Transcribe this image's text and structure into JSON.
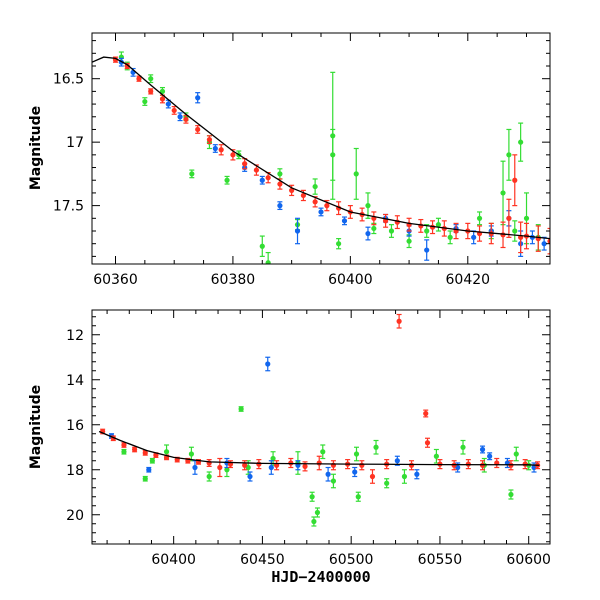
{
  "colors": {
    "green": "#33dd33",
    "blue": "#1166ee",
    "red": "#ff3322",
    "model": "#000000"
  },
  "chart_data": [
    {
      "type": "scatter",
      "ylabel": "Magnitude",
      "xlabel": "",
      "xlim": [
        60356,
        60434
      ],
      "ylim": [
        17.96,
        16.14
      ],
      "y_inverted": true,
      "xticks": [
        60360,
        60380,
        60400,
        60420
      ],
      "yticks": [
        16.5,
        17,
        17.5
      ],
      "xtick_labels": [
        "60360",
        "60380",
        "60400",
        "60420"
      ],
      "ytick_labels": [
        "16.5",
        "17",
        "17.5"
      ],
      "model_curve": [
        [
          60356,
          16.37
        ],
        [
          60358,
          16.33
        ],
        [
          60360,
          16.34
        ],
        [
          60362,
          16.39
        ],
        [
          60366,
          16.55
        ],
        [
          60372,
          16.78
        ],
        [
          60380,
          17.07
        ],
        [
          60390,
          17.36
        ],
        [
          60400,
          17.55
        ],
        [
          60410,
          17.64
        ],
        [
          60420,
          17.7
        ],
        [
          60430,
          17.74
        ],
        [
          60434,
          17.76
        ]
      ],
      "series": [
        {
          "color": "green",
          "points": [
            [
              60361,
              16.33,
              0.04
            ],
            [
              60362,
              16.4,
              0.03
            ],
            [
              60365,
              16.68,
              0.03
            ],
            [
              60366,
              16.5,
              0.03
            ],
            [
              60368,
              16.6,
              0.03
            ],
            [
              60372,
              16.8,
              0.03
            ],
            [
              60373,
              17.25,
              0.03
            ],
            [
              60376,
              17.0,
              0.05
            ],
            [
              60379,
              17.3,
              0.03
            ],
            [
              60381,
              17.1,
              0.03
            ],
            [
              60385,
              17.82,
              0.08
            ],
            [
              60386,
              17.95,
              0.08
            ],
            [
              60388,
              17.25,
              0.04
            ],
            [
              60391,
              17.65,
              0.04
            ],
            [
              60394,
              17.35,
              0.06
            ],
            [
              60397,
              16.95,
              0.5
            ],
            [
              60397,
              17.1,
              0.2
            ],
            [
              60398,
              17.8,
              0.04
            ],
            [
              60401,
              17.25,
              0.2
            ],
            [
              60403,
              17.5,
              0.1
            ],
            [
              60404,
              17.68,
              0.04
            ],
            [
              60407,
              17.7,
              0.05
            ],
            [
              60410,
              17.78,
              0.05
            ],
            [
              60413,
              17.7,
              0.05
            ],
            [
              60415,
              17.65,
              0.05
            ],
            [
              60417,
              17.75,
              0.05
            ],
            [
              60422,
              17.6,
              0.05
            ],
            [
              60424,
              17.7,
              0.06
            ],
            [
              60426,
              17.4,
              0.25
            ],
            [
              60427,
              17.1,
              0.2
            ],
            [
              60428,
              17.7,
              0.08
            ],
            [
              60429,
              17.0,
              0.15
            ],
            [
              60430,
              17.6,
              0.2
            ],
            [
              60432,
              17.75,
              0.1
            ]
          ]
        },
        {
          "color": "blue",
          "points": [
            [
              60361,
              16.37,
              0.03
            ],
            [
              60363,
              16.45,
              0.03
            ],
            [
              60369,
              16.7,
              0.03
            ],
            [
              60371,
              16.8,
              0.03
            ],
            [
              60374,
              16.65,
              0.04
            ],
            [
              60377,
              17.05,
              0.03
            ],
            [
              60382,
              17.2,
              0.03
            ],
            [
              60385,
              17.3,
              0.03
            ],
            [
              60388,
              17.5,
              0.03
            ],
            [
              60391,
              17.7,
              0.1
            ],
            [
              60395,
              17.55,
              0.03
            ],
            [
              60399,
              17.62,
              0.03
            ],
            [
              60403,
              17.72,
              0.05
            ],
            [
              60406,
              17.6,
              0.03
            ],
            [
              60410,
              17.7,
              0.04
            ],
            [
              60413,
              17.85,
              0.08
            ],
            [
              60418,
              17.68,
              0.03
            ],
            [
              60421,
              17.75,
              0.05
            ],
            [
              60424,
              17.7,
              0.04
            ],
            [
              60427,
              17.6,
              0.06
            ],
            [
              60429,
              17.8,
              0.1
            ],
            [
              60431,
              17.75,
              0.05
            ],
            [
              60433,
              17.8,
              0.05
            ]
          ]
        },
        {
          "color": "red",
          "points": [
            [
              60360,
              16.35,
              0.02
            ],
            [
              60362,
              16.4,
              0.02
            ],
            [
              60364,
              16.5,
              0.02
            ],
            [
              60366,
              16.6,
              0.02
            ],
            [
              60368,
              16.66,
              0.03
            ],
            [
              60370,
              16.75,
              0.03
            ],
            [
              60372,
              16.82,
              0.03
            ],
            [
              60374,
              16.9,
              0.03
            ],
            [
              60376,
              16.98,
              0.03
            ],
            [
              60378,
              17.06,
              0.04
            ],
            [
              60380,
              17.1,
              0.04
            ],
            [
              60382,
              17.17,
              0.04
            ],
            [
              60384,
              17.22,
              0.04
            ],
            [
              60386,
              17.28,
              0.04
            ],
            [
              60388,
              17.33,
              0.04
            ],
            [
              60390,
              17.38,
              0.04
            ],
            [
              60392,
              17.42,
              0.04
            ],
            [
              60394,
              17.47,
              0.04
            ],
            [
              60396,
              17.5,
              0.04
            ],
            [
              60398,
              17.52,
              0.05
            ],
            [
              60400,
              17.55,
              0.05
            ],
            [
              60402,
              17.57,
              0.05
            ],
            [
              60404,
              17.6,
              0.05
            ],
            [
              60406,
              17.62,
              0.05
            ],
            [
              60408,
              17.63,
              0.05
            ],
            [
              60410,
              17.65,
              0.05
            ],
            [
              60412,
              17.66,
              0.05
            ],
            [
              60414,
              17.67,
              0.05
            ],
            [
              60416,
              17.68,
              0.06
            ],
            [
              60418,
              17.7,
              0.06
            ],
            [
              60420,
              17.7,
              0.06
            ],
            [
              60422,
              17.72,
              0.06
            ],
            [
              60424,
              17.72,
              0.08
            ],
            [
              60426,
              17.73,
              0.1
            ],
            [
              60427,
              17.6,
              0.15
            ],
            [
              60428,
              17.3,
              0.2
            ],
            [
              60429,
              17.75,
              0.12
            ],
            [
              60430,
              17.74,
              0.1
            ],
            [
              60432,
              17.76,
              0.1
            ],
            [
              60434,
              17.78,
              0.1
            ]
          ]
        }
      ]
    },
    {
      "type": "scatter",
      "ylabel": "Magnitude",
      "xlabel": "HJD−2400000",
      "xlim": [
        60354,
        60612
      ],
      "ylim": [
        21.3,
        10.9
      ],
      "y_inverted": true,
      "xticks": [
        60400,
        60450,
        60500,
        60550,
        60600
      ],
      "yticks": [
        12,
        14,
        16,
        18,
        20
      ],
      "xtick_labels": [
        "60400",
        "60450",
        "60500",
        "60550",
        "60600"
      ],
      "ytick_labels": [
        "12",
        "14",
        "16",
        "18",
        "20"
      ],
      "model_curve": [
        [
          60358,
          16.3
        ],
        [
          60370,
          16.7
        ],
        [
          60385,
          17.15
        ],
        [
          60400,
          17.45
        ],
        [
          60420,
          17.65
        ],
        [
          60450,
          17.72
        ],
        [
          60500,
          17.75
        ],
        [
          60550,
          17.77
        ],
        [
          60600,
          17.78
        ],
        [
          60606,
          17.8
        ]
      ],
      "series": [
        {
          "color": "green",
          "points": [
            [
              60372,
              17.2,
              0.1
            ],
            [
              60384,
              18.4,
              0.1
            ],
            [
              60388,
              17.6,
              0.1
            ],
            [
              60396,
              17.2,
              0.3
            ],
            [
              60410,
              17.3,
              0.3
            ],
            [
              60420,
              18.3,
              0.2
            ],
            [
              60430,
              18.0,
              0.3
            ],
            [
              60438,
              15.3,
              0.1
            ],
            [
              60442,
              17.9,
              0.3
            ],
            [
              60456,
              17.5,
              0.3
            ],
            [
              60470,
              17.7,
              0.5
            ],
            [
              60478,
              19.2,
              0.2
            ],
            [
              60479,
              20.3,
              0.2
            ],
            [
              60481,
              19.9,
              0.2
            ],
            [
              60484,
              17.2,
              0.3
            ],
            [
              60490,
              18.5,
              0.3
            ],
            [
              60503,
              17.3,
              0.3
            ],
            [
              60504,
              19.2,
              0.2
            ],
            [
              60514,
              17.0,
              0.3
            ],
            [
              60520,
              18.6,
              0.2
            ],
            [
              60530,
              18.3,
              0.3
            ],
            [
              60548,
              17.4,
              0.3
            ],
            [
              60563,
              17.0,
              0.3
            ],
            [
              60575,
              17.8,
              0.3
            ],
            [
              60590,
              19.1,
              0.2
            ],
            [
              60593,
              17.3,
              0.3
            ],
            [
              60600,
              17.8,
              0.2
            ]
          ]
        },
        {
          "color": "blue",
          "points": [
            [
              60365,
              16.5,
              0.1
            ],
            [
              60386,
              18.0,
              0.1
            ],
            [
              60412,
              17.9,
              0.3
            ],
            [
              60430,
              17.7,
              0.2
            ],
            [
              60443,
              18.3,
              0.2
            ],
            [
              60453,
              13.3,
              0.3
            ],
            [
              60455,
              17.9,
              0.3
            ],
            [
              60470,
              17.8,
              0.2
            ],
            [
              60487,
              18.2,
              0.3
            ],
            [
              60502,
              18.1,
              0.2
            ],
            [
              60526,
              17.6,
              0.2
            ],
            [
              60537,
              18.2,
              0.2
            ],
            [
              60560,
              17.9,
              0.2
            ],
            [
              60574,
              17.1,
              0.15
            ],
            [
              60578,
              17.4,
              0.15
            ],
            [
              60588,
              17.7,
              0.2
            ],
            [
              60603,
              17.9,
              0.2
            ]
          ]
        },
        {
          "color": "red",
          "points": [
            [
              60360,
              16.3,
              0.1
            ],
            [
              60366,
              16.6,
              0.1
            ],
            [
              60372,
              16.9,
              0.1
            ],
            [
              60378,
              17.1,
              0.1
            ],
            [
              60384,
              17.25,
              0.1
            ],
            [
              60390,
              17.35,
              0.1
            ],
            [
              60396,
              17.45,
              0.1
            ],
            [
              60402,
              17.55,
              0.1
            ],
            [
              60408,
              17.6,
              0.1
            ],
            [
              60414,
              17.65,
              0.1
            ],
            [
              60420,
              17.7,
              0.15
            ],
            [
              60426,
              17.9,
              0.4
            ],
            [
              60432,
              17.75,
              0.15
            ],
            [
              60440,
              17.8,
              0.2
            ],
            [
              60448,
              17.75,
              0.2
            ],
            [
              60458,
              17.8,
              0.2
            ],
            [
              60466,
              17.7,
              0.2
            ],
            [
              60474,
              17.85,
              0.2
            ],
            [
              60482,
              17.7,
              0.3
            ],
            [
              60490,
              17.8,
              0.2
            ],
            [
              60498,
              17.75,
              0.2
            ],
            [
              60506,
              17.8,
              0.2
            ],
            [
              60512,
              18.3,
              0.3
            ],
            [
              60520,
              17.75,
              0.2
            ],
            [
              60527,
              11.4,
              0.3
            ],
            [
              60534,
              17.8,
              0.2
            ],
            [
              60542,
              15.5,
              0.15
            ],
            [
              60543,
              16.8,
              0.2
            ],
            [
              60550,
              17.75,
              0.2
            ],
            [
              60558,
              17.8,
              0.2
            ],
            [
              60566,
              17.75,
              0.2
            ],
            [
              60574,
              17.8,
              0.2
            ],
            [
              60582,
              17.7,
              0.2
            ],
            [
              60590,
              17.8,
              0.2
            ],
            [
              60598,
              17.75,
              0.2
            ],
            [
              60605,
              17.8,
              0.15
            ]
          ]
        }
      ]
    }
  ]
}
